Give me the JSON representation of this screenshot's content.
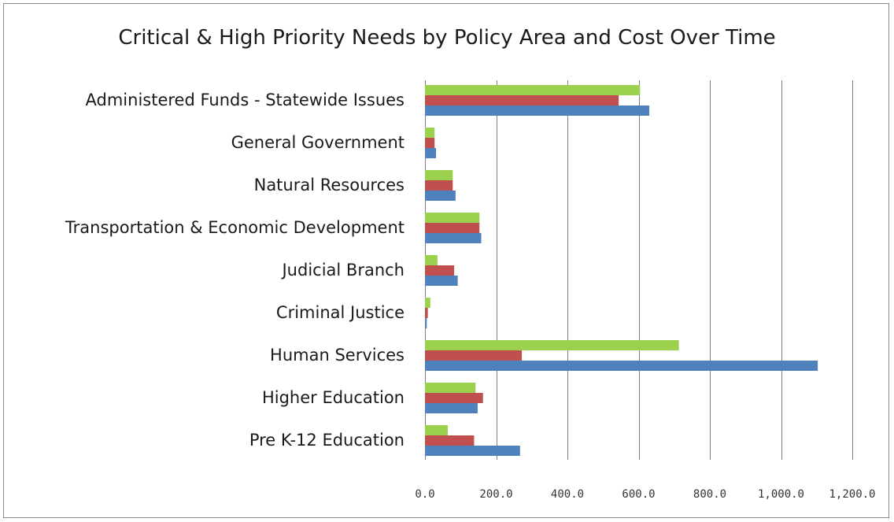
{
  "chart_data": {
    "type": "bar",
    "orientation": "horizontal",
    "title": "Critical & High Priority Needs by Policy Area and Cost Over Time",
    "xlabel": "",
    "ylabel": "",
    "categories": [
      "Administered Funds - Statewide Issues",
      "General Government",
      "Natural Resources",
      "Transportation & Economic Development",
      "Judicial Branch",
      "Criminal Justice",
      "Human Services",
      "Higher Education",
      "Pre K-12 Education"
    ],
    "series": [
      {
        "color": "#9bd14e",
        "values": [
          604,
          27,
          78,
          153,
          35,
          15,
          713,
          142,
          64
        ]
      },
      {
        "color": "#c0504d",
        "values": [
          544,
          27,
          78,
          153,
          82,
          8,
          272,
          163,
          138
        ]
      },
      {
        "color": "#4f81bd",
        "values": [
          630,
          31,
          86,
          158,
          92,
          5,
          1103,
          148,
          267
        ]
      }
    ],
    "xlim": [
      0,
      1200
    ],
    "xticks": [
      0,
      200,
      400,
      600,
      800,
      1000,
      1200
    ],
    "xtick_labels": [
      "0.0",
      "200.0",
      "400.0",
      "600.0",
      "800.0",
      "1,000.0",
      "1,200.0"
    ],
    "grid": "vertical",
    "legend": "none"
  }
}
